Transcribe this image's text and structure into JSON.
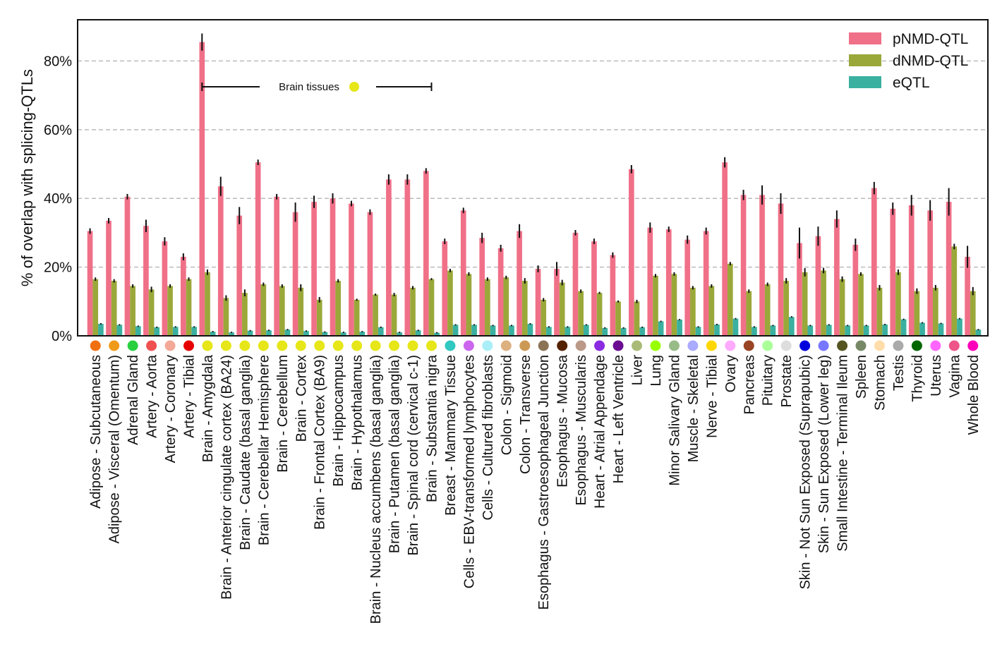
{
  "chart_data": {
    "type": "bar",
    "title": "",
    "xlabel": "",
    "ylabel": "% of overlap with splicing-QTLs",
    "ylim": [
      0,
      92
    ],
    "yticks": [
      0,
      20,
      40,
      60,
      80
    ],
    "ytick_labels": [
      "0%",
      "20%",
      "40%",
      "60%",
      "80%"
    ],
    "grid": "horizontal dashed",
    "legend_position": "top-right",
    "annotation": {
      "text": "Brain tissues",
      "marker_color": "#e6e619",
      "span": "Brain - Amygdala to Brain - Substantia nigra"
    },
    "categories": [
      "Adipose - Subcutaneous",
      "Adipose - Visceral (Omentum)",
      "Adrenal Gland",
      "Artery - Aorta",
      "Artery - Coronary",
      "Artery - Tibial",
      "Brain - Amygdala",
      "Brain - Anterior cingulate cortex (BA24)",
      "Brain - Caudate (basal ganglia)",
      "Brain - Cerebellar Hemisphere",
      "Brain - Cerebellum",
      "Brain - Cortex",
      "Brain - Frontal Cortex (BA9)",
      "Brain - Hippocampus",
      "Brain - Hypothalamus",
      "Brain - Nucleus accumbens (basal ganglia)",
      "Brain - Putamen (basal ganglia)",
      "Brain - Spinal cord (cervical c-1)",
      "Brain - Substantia nigra",
      "Breast - Mammary Tissue",
      "Cells - EBV-transformed lymphocytes",
      "Cells - Cultured fibroblasts",
      "Colon - Sigmoid",
      "Colon - Transverse",
      "Esophagus - Gastroesophageal Junction",
      "Esophagus - Mucosa",
      "Esophagus - Muscularis",
      "Heart - Atrial Appendage",
      "Heart - Left Ventricle",
      "Liver",
      "Lung",
      "Minor Salivary Gland",
      "Muscle - Skeletal",
      "Nerve - Tibial",
      "Ovary",
      "Pancreas",
      "Pituitary",
      "Prostate",
      "Skin - Not Sun Exposed (Suprapubic)",
      "Skin - Sun Exposed (Lower leg)",
      "Small Intestine - Terminal Ileum",
      "Spleen",
      "Stomach",
      "Testis",
      "Thyroid",
      "Uterus",
      "Vagina",
      "Whole Blood"
    ],
    "category_colors": [
      "#f07010",
      "#f09a1a",
      "#28d040",
      "#f05050",
      "#f4a898",
      "#e60000",
      "#e6e619",
      "#e6e619",
      "#e6e619",
      "#e6e619",
      "#e6e619",
      "#e6e619",
      "#e6e619",
      "#e6e619",
      "#e6e619",
      "#e6e619",
      "#e6e619",
      "#e6e619",
      "#e6e619",
      "#30c8c0",
      "#cc66ee",
      "#aaeef8",
      "#ddb080",
      "#cc9955",
      "#8b7355",
      "#552200",
      "#bb9988",
      "#8a2be2",
      "#6a0d91",
      "#aabb77",
      "#99ff00",
      "#99bb88",
      "#aaaaff",
      "#ffd700",
      "#ffaaff",
      "#994422",
      "#aaff99",
      "#dddddd",
      "#0000dd",
      "#7777ff",
      "#555522",
      "#778866",
      "#ffddaa",
      "#aaaaaa",
      "#006600",
      "#ff66ff",
      "#ee5588",
      "#ff00bb"
    ],
    "series": [
      {
        "name": "pNMD-QTL",
        "color": "#f07088",
        "values": [
          30.5,
          33.5,
          40.5,
          32,
          27.5,
          23,
          85.5,
          43.5,
          35,
          50.5,
          40.5,
          36,
          39,
          40,
          38.5,
          36,
          45.5,
          45.5,
          48,
          27.5,
          36.5,
          28.5,
          25.5,
          30.5,
          19.5,
          19.5,
          30,
          27.5,
          23.5,
          48.5,
          31.5,
          31,
          28,
          30.5,
          50.5,
          41,
          41,
          38.5,
          27,
          29,
          34,
          26.5,
          43,
          37,
          38,
          36.5,
          39,
          23
        ],
        "errors": [
          0.8,
          0.8,
          0.8,
          1.8,
          1.2,
          1.0,
          2.5,
          2.8,
          2.5,
          0.8,
          0.8,
          2.8,
          1.8,
          1.5,
          0.8,
          0.8,
          1.5,
          1.5,
          0.8,
          0.8,
          0.8,
          1.5,
          1.0,
          2.0,
          1.0,
          2.0,
          0.8,
          0.8,
          0.8,
          1.2,
          1.5,
          0.8,
          1.2,
          1.0,
          1.5,
          1.5,
          2.8,
          3.0,
          4.5,
          2.8,
          2.5,
          1.8,
          1.8,
          1.8,
          3.0,
          3.0,
          4.0,
          3.2
        ]
      },
      {
        "name": "dNMD-QTL",
        "color": "#9aa83a",
        "values": [
          16.5,
          16,
          14.5,
          13.5,
          14.5,
          16.5,
          18.5,
          11,
          12.5,
          15,
          14.5,
          14,
          10.5,
          16,
          10.5,
          12,
          12,
          14,
          16.5,
          19,
          18,
          16.5,
          17,
          16,
          10.5,
          15.5,
          13,
          12.5,
          10,
          10,
          17.5,
          18,
          14,
          14.5,
          21,
          13,
          15,
          16,
          18.5,
          19,
          16.5,
          18,
          14,
          18.5,
          13,
          14,
          26,
          13
        ],
        "errors": [
          0.5,
          0.5,
          0.5,
          0.8,
          0.5,
          0.5,
          0.8,
          0.8,
          1.0,
          0.5,
          0.5,
          1.0,
          0.8,
          0.5,
          0.3,
          0.3,
          0.5,
          0.5,
          0.3,
          0.5,
          0.5,
          0.5,
          0.5,
          0.8,
          0.5,
          0.8,
          0.5,
          0.3,
          0.3,
          0.5,
          0.5,
          0.5,
          0.5,
          0.5,
          0.5,
          0.5,
          0.5,
          0.8,
          1.2,
          0.8,
          0.8,
          0.5,
          0.8,
          0.8,
          0.8,
          0.8,
          0.8,
          1.2
        ]
      },
      {
        "name": "eQTL",
        "color": "#3ab0a0",
        "values": [
          3.5,
          3.2,
          2.8,
          2.5,
          2.6,
          2.6,
          1.2,
          1.0,
          1.5,
          1.6,
          1.8,
          1.4,
          1.1,
          1.0,
          1.2,
          2.5,
          1.0,
          1.6,
          0.9,
          3.2,
          3.2,
          3.0,
          3.0,
          3.5,
          2.6,
          2.6,
          3.2,
          2.3,
          2.3,
          2.5,
          4.2,
          4.7,
          2.6,
          3.3,
          5.0,
          2.6,
          3.0,
          5.5,
          3.0,
          3.2,
          3.0,
          3.0,
          3.3,
          4.8,
          3.8,
          3.6,
          5.0,
          1.8
        ],
        "errors": [
          0.2,
          0.2,
          0.2,
          0.2,
          0.2,
          0.2,
          0.2,
          0.2,
          0.2,
          0.2,
          0.2,
          0.2,
          0.2,
          0.2,
          0.2,
          0.2,
          0.2,
          0.2,
          0.2,
          0.2,
          0.2,
          0.2,
          0.2,
          0.2,
          0.2,
          0.2,
          0.2,
          0.2,
          0.2,
          0.2,
          0.2,
          0.2,
          0.2,
          0.2,
          0.2,
          0.2,
          0.2,
          0.2,
          0.2,
          0.2,
          0.2,
          0.2,
          0.2,
          0.2,
          0.2,
          0.2,
          0.2,
          0.2
        ]
      }
    ]
  }
}
